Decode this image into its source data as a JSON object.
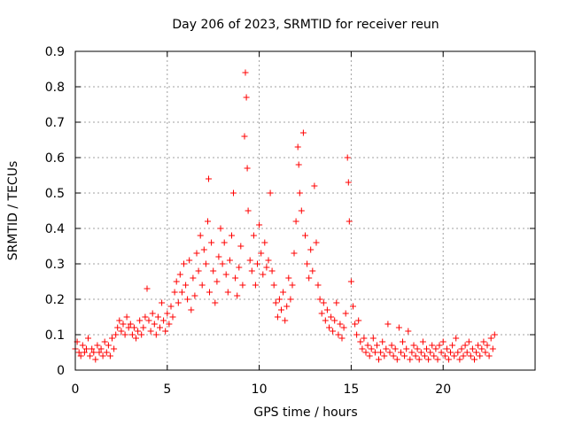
{
  "chart_data": {
    "type": "scatter",
    "title": "Day 206 of 2023, SRMTID for receiver reun",
    "xlabel": "GPS time / hours",
    "ylabel": "SRMTID / TECUs",
    "xlim": [
      0,
      25
    ],
    "ylim": [
      0,
      0.9
    ],
    "xticks": [
      0,
      5,
      10,
      15,
      20
    ],
    "yticks": [
      0,
      0.1,
      0.2,
      0.3,
      0.4,
      0.5,
      0.6,
      0.7,
      0.8,
      0.9
    ],
    "xtick_labels": [
      "0",
      "5",
      "10",
      "15",
      "20"
    ],
    "ytick_labels": [
      "0",
      "0.1",
      "0.2",
      "0.3",
      "0.4",
      "0.5",
      "0.6",
      "0.7",
      "0.8",
      "0.9"
    ],
    "grid": true,
    "marker": "+",
    "color": "#ff0000",
    "series": [
      {
        "name": "SRMTID",
        "points": [
          [
            0.0,
            0.06
          ],
          [
            0.1,
            0.08
          ],
          [
            0.2,
            0.05
          ],
          [
            0.3,
            0.04
          ],
          [
            0.4,
            0.07
          ],
          [
            0.5,
            0.05
          ],
          [
            0.6,
            0.06
          ],
          [
            0.7,
            0.09
          ],
          [
            0.8,
            0.04
          ],
          [
            0.9,
            0.06
          ],
          [
            1.0,
            0.05
          ],
          [
            1.1,
            0.03
          ],
          [
            1.2,
            0.07
          ],
          [
            1.3,
            0.05
          ],
          [
            1.4,
            0.06
          ],
          [
            1.5,
            0.04
          ],
          [
            1.6,
            0.08
          ],
          [
            1.7,
            0.05
          ],
          [
            1.8,
            0.07
          ],
          [
            1.9,
            0.04
          ],
          [
            2.0,
            0.09
          ],
          [
            2.1,
            0.06
          ],
          [
            2.2,
            0.1
          ],
          [
            2.3,
            0.12
          ],
          [
            2.4,
            0.14
          ],
          [
            2.5,
            0.11
          ],
          [
            2.6,
            0.13
          ],
          [
            2.7,
            0.1
          ],
          [
            2.8,
            0.15
          ],
          [
            2.9,
            0.12
          ],
          [
            3.0,
            0.13
          ],
          [
            3.1,
            0.1
          ],
          [
            3.2,
            0.12
          ],
          [
            3.3,
            0.09
          ],
          [
            3.4,
            0.11
          ],
          [
            3.5,
            0.14
          ],
          [
            3.6,
            0.1
          ],
          [
            3.7,
            0.12
          ],
          [
            3.8,
            0.15
          ],
          [
            3.9,
            0.23
          ],
          [
            4.0,
            0.14
          ],
          [
            4.1,
            0.11
          ],
          [
            4.2,
            0.16
          ],
          [
            4.3,
            0.13
          ],
          [
            4.4,
            0.1
          ],
          [
            4.5,
            0.15
          ],
          [
            4.6,
            0.12
          ],
          [
            4.7,
            0.19
          ],
          [
            4.8,
            0.14
          ],
          [
            4.9,
            0.11
          ],
          [
            5.0,
            0.16
          ],
          [
            5.1,
            0.13
          ],
          [
            5.2,
            0.18
          ],
          [
            5.3,
            0.15
          ],
          [
            5.4,
            0.22
          ],
          [
            5.5,
            0.25
          ],
          [
            5.6,
            0.19
          ],
          [
            5.7,
            0.27
          ],
          [
            5.8,
            0.22
          ],
          [
            5.9,
            0.3
          ],
          [
            6.0,
            0.24
          ],
          [
            6.1,
            0.2
          ],
          [
            6.2,
            0.31
          ],
          [
            6.3,
            0.17
          ],
          [
            6.4,
            0.26
          ],
          [
            6.5,
            0.21
          ],
          [
            6.6,
            0.33
          ],
          [
            6.7,
            0.28
          ],
          [
            6.8,
            0.38
          ],
          [
            6.9,
            0.24
          ],
          [
            7.0,
            0.34
          ],
          [
            7.1,
            0.3
          ],
          [
            7.2,
            0.42
          ],
          [
            7.25,
            0.54
          ],
          [
            7.3,
            0.22
          ],
          [
            7.4,
            0.36
          ],
          [
            7.5,
            0.28
          ],
          [
            7.6,
            0.19
          ],
          [
            7.7,
            0.25
          ],
          [
            7.8,
            0.32
          ],
          [
            7.9,
            0.4
          ],
          [
            8.0,
            0.3
          ],
          [
            8.1,
            0.36
          ],
          [
            8.2,
            0.27
          ],
          [
            8.3,
            0.22
          ],
          [
            8.4,
            0.31
          ],
          [
            8.5,
            0.38
          ],
          [
            8.6,
            0.5
          ],
          [
            8.7,
            0.26
          ],
          [
            8.8,
            0.21
          ],
          [
            8.9,
            0.29
          ],
          [
            9.0,
            0.35
          ],
          [
            9.1,
            0.24
          ],
          [
            9.2,
            0.66
          ],
          [
            9.25,
            0.84
          ],
          [
            9.3,
            0.77
          ],
          [
            9.35,
            0.57
          ],
          [
            9.4,
            0.45
          ],
          [
            9.5,
            0.31
          ],
          [
            9.6,
            0.28
          ],
          [
            9.7,
            0.38
          ],
          [
            9.8,
            0.24
          ],
          [
            9.9,
            0.3
          ],
          [
            10.0,
            0.41
          ],
          [
            10.1,
            0.33
          ],
          [
            10.2,
            0.27
          ],
          [
            10.3,
            0.36
          ],
          [
            10.4,
            0.29
          ],
          [
            10.5,
            0.31
          ],
          [
            10.6,
            0.5
          ],
          [
            10.7,
            0.28
          ],
          [
            10.8,
            0.24
          ],
          [
            10.9,
            0.19
          ],
          [
            11.0,
            0.15
          ],
          [
            11.1,
            0.2
          ],
          [
            11.2,
            0.17
          ],
          [
            11.3,
            0.22
          ],
          [
            11.4,
            0.14
          ],
          [
            11.5,
            0.18
          ],
          [
            11.6,
            0.26
          ],
          [
            11.7,
            0.2
          ],
          [
            11.8,
            0.24
          ],
          [
            11.9,
            0.33
          ],
          [
            12.0,
            0.42
          ],
          [
            12.1,
            0.63
          ],
          [
            12.15,
            0.58
          ],
          [
            12.2,
            0.5
          ],
          [
            12.3,
            0.45
          ],
          [
            12.4,
            0.67
          ],
          [
            12.5,
            0.38
          ],
          [
            12.6,
            0.3
          ],
          [
            12.7,
            0.26
          ],
          [
            12.8,
            0.34
          ],
          [
            12.9,
            0.28
          ],
          [
            13.0,
            0.52
          ],
          [
            13.1,
            0.36
          ],
          [
            13.2,
            0.24
          ],
          [
            13.3,
            0.2
          ],
          [
            13.4,
            0.16
          ],
          [
            13.5,
            0.19
          ],
          [
            13.6,
            0.14
          ],
          [
            13.7,
            0.17
          ],
          [
            13.8,
            0.12
          ],
          [
            13.9,
            0.15
          ],
          [
            14.0,
            0.11
          ],
          [
            14.1,
            0.14
          ],
          [
            14.2,
            0.19
          ],
          [
            14.3,
            0.1
          ],
          [
            14.4,
            0.13
          ],
          [
            14.5,
            0.09
          ],
          [
            14.6,
            0.12
          ],
          [
            14.7,
            0.16
          ],
          [
            14.8,
            0.6
          ],
          [
            14.85,
            0.53
          ],
          [
            14.9,
            0.42
          ],
          [
            15.0,
            0.25
          ],
          [
            15.1,
            0.18
          ],
          [
            15.2,
            0.13
          ],
          [
            15.3,
            0.1
          ],
          [
            15.4,
            0.14
          ],
          [
            15.5,
            0.08
          ],
          [
            15.6,
            0.06
          ],
          [
            15.7,
            0.09
          ],
          [
            15.8,
            0.05
          ],
          [
            15.9,
            0.07
          ],
          [
            16.0,
            0.04
          ],
          [
            16.1,
            0.06
          ],
          [
            16.2,
            0.09
          ],
          [
            16.3,
            0.05
          ],
          [
            16.4,
            0.07
          ],
          [
            16.5,
            0.03
          ],
          [
            16.6,
            0.05
          ],
          [
            16.7,
            0.08
          ],
          [
            16.8,
            0.04
          ],
          [
            16.9,
            0.06
          ],
          [
            17.0,
            0.13
          ],
          [
            17.1,
            0.05
          ],
          [
            17.2,
            0.07
          ],
          [
            17.3,
            0.04
          ],
          [
            17.4,
            0.06
          ],
          [
            17.5,
            0.03
          ],
          [
            17.6,
            0.12
          ],
          [
            17.7,
            0.05
          ],
          [
            17.8,
            0.08
          ],
          [
            17.9,
            0.04
          ],
          [
            18.0,
            0.06
          ],
          [
            18.1,
            0.11
          ],
          [
            18.2,
            0.03
          ],
          [
            18.3,
            0.05
          ],
          [
            18.4,
            0.07
          ],
          [
            18.5,
            0.04
          ],
          [
            18.6,
            0.06
          ],
          [
            18.7,
            0.03
          ],
          [
            18.8,
            0.05
          ],
          [
            18.9,
            0.08
          ],
          [
            19.0,
            0.04
          ],
          [
            19.1,
            0.06
          ],
          [
            19.2,
            0.03
          ],
          [
            19.3,
            0.05
          ],
          [
            19.4,
            0.07
          ],
          [
            19.5,
            0.04
          ],
          [
            19.6,
            0.06
          ],
          [
            19.7,
            0.03
          ],
          [
            19.8,
            0.07
          ],
          [
            19.9,
            0.05
          ],
          [
            20.0,
            0.08
          ],
          [
            20.1,
            0.04
          ],
          [
            20.2,
            0.06
          ],
          [
            20.3,
            0.03
          ],
          [
            20.4,
            0.05
          ],
          [
            20.5,
            0.07
          ],
          [
            20.6,
            0.04
          ],
          [
            20.7,
            0.09
          ],
          [
            20.8,
            0.05
          ],
          [
            20.9,
            0.03
          ],
          [
            21.0,
            0.06
          ],
          [
            21.1,
            0.04
          ],
          [
            21.2,
            0.07
          ],
          [
            21.3,
            0.05
          ],
          [
            21.4,
            0.08
          ],
          [
            21.5,
            0.04
          ],
          [
            21.6,
            0.06
          ],
          [
            21.7,
            0.03
          ],
          [
            21.8,
            0.05
          ],
          [
            21.9,
            0.07
          ],
          [
            22.0,
            0.04
          ],
          [
            22.1,
            0.06
          ],
          [
            22.2,
            0.08
          ],
          [
            22.3,
            0.05
          ],
          [
            22.4,
            0.07
          ],
          [
            22.5,
            0.04
          ],
          [
            22.6,
            0.09
          ],
          [
            22.7,
            0.06
          ],
          [
            22.8,
            0.1
          ]
        ]
      }
    ]
  }
}
